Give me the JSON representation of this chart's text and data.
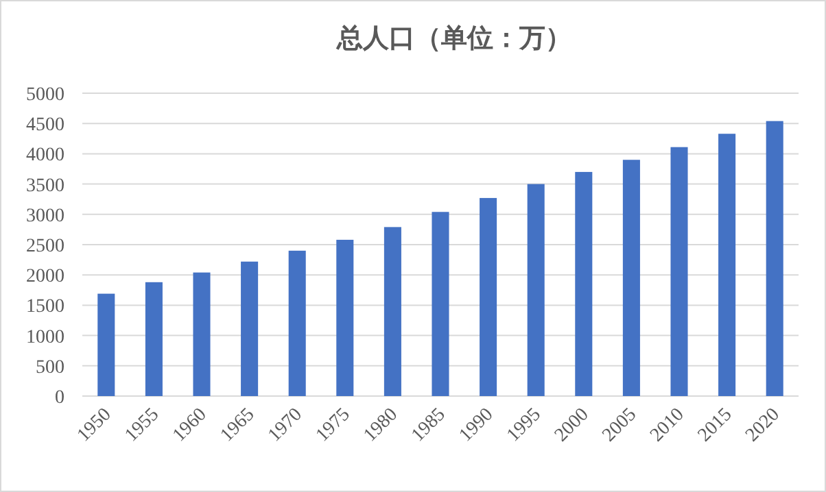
{
  "chart_data": {
    "type": "bar",
    "title": "总人口（单位：万）",
    "categories": [
      "1950",
      "1955",
      "1960",
      "1965",
      "1970",
      "1975",
      "1980",
      "1985",
      "1990",
      "1995",
      "2000",
      "2005",
      "2010",
      "2015",
      "2020"
    ],
    "values": [
      1690,
      1880,
      2040,
      2220,
      2400,
      2580,
      2790,
      3040,
      3270,
      3500,
      3700,
      3900,
      4110,
      4330,
      4540
    ],
    "color": "#4472c4",
    "ylim": [
      0,
      5000
    ],
    "yticks": [
      0,
      500,
      1000,
      1500,
      2000,
      2500,
      3000,
      3500,
      4000,
      4500,
      5000
    ],
    "grid": "y"
  }
}
